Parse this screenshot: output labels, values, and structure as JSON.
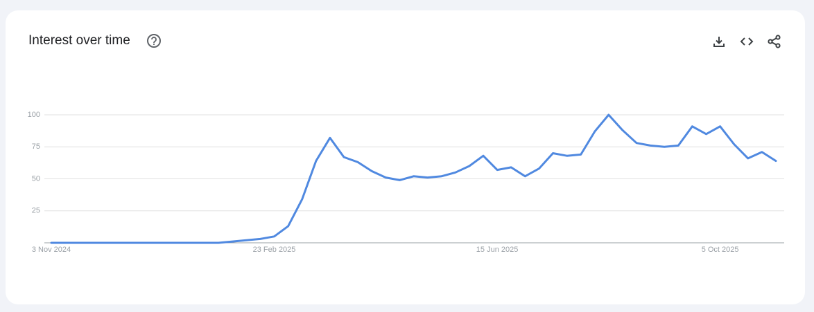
{
  "chart_data": {
    "type": "line",
    "title": "Interest over time",
    "categories": [
      "3 Nov 2024",
      null,
      null,
      null,
      null,
      null,
      null,
      null,
      null,
      null,
      null,
      null,
      null,
      null,
      null,
      null,
      "23 Feb 2025",
      null,
      null,
      null,
      null,
      null,
      null,
      null,
      null,
      null,
      null,
      null,
      null,
      null,
      null,
      null,
      "15 Jun 2025",
      null,
      null,
      null,
      null,
      null,
      null,
      null,
      null,
      null,
      null,
      null,
      null,
      null,
      null,
      null,
      "5 Oct 2025",
      null,
      null,
      null,
      null
    ],
    "values": [
      0,
      0,
      0,
      0,
      0,
      0,
      0,
      0,
      0,
      0,
      0,
      0,
      0,
      1,
      2,
      3,
      5,
      13,
      34,
      64,
      82,
      67,
      63,
      56,
      51,
      49,
      52,
      51,
      52,
      55,
      60,
      68,
      57,
      59,
      52,
      58,
      70,
      68,
      69,
      87,
      100,
      88,
      78,
      76,
      75,
      76,
      91,
      85,
      91,
      77,
      66,
      71,
      64
    ],
    "color": "#5089e0",
    "ylim": [
      0,
      100
    ],
    "yticks": [
      25,
      50,
      75,
      100
    ],
    "grid": true
  }
}
